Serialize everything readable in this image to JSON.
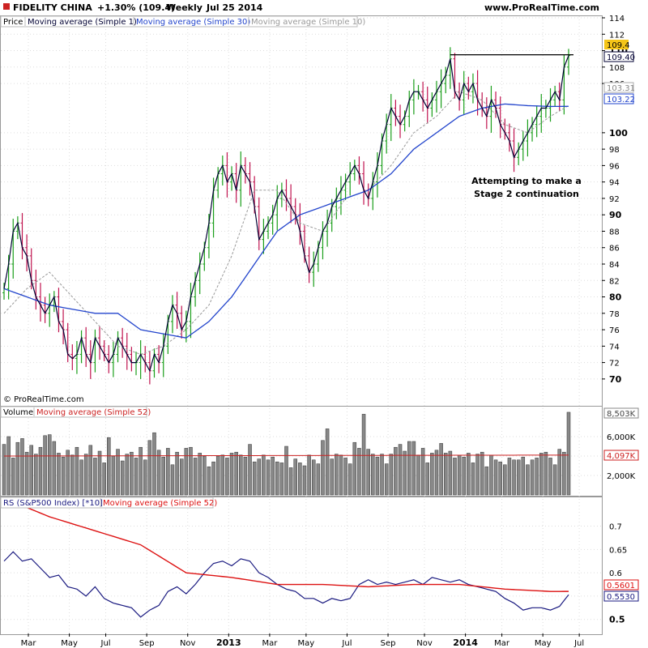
{
  "header": {
    "instrument": "FIDELITY CHINA",
    "change": "+1.30% (109.4)",
    "period": "Weekly",
    "date": "Jul 25 2014",
    "site": "www.ProRealTime.com"
  },
  "copyright": "© ProRealTime.com",
  "legends": {
    "price": [
      "Price",
      "Moving average (Simple 1)",
      "Moving average (Simple 30)",
      "Moving average (Simple 10)"
    ],
    "volume": [
      "Volume",
      "Moving average (Simple 52)"
    ],
    "rs": [
      "RS (S&P500 Index) [*10]",
      "Moving average (Simple 52)"
    ]
  },
  "colors": {
    "up": "#1a9e1a",
    "down": "#c0134f",
    "ma1": "#000033",
    "ma30": "#2244cc",
    "ma10": "#999999",
    "volbar": "#888888",
    "volma": "#cc2222",
    "rsline": "#1a1a80",
    "rsma": "#dd1111",
    "grid": "#dddddd",
    "lastprice_bg": "#f5c518"
  },
  "chart_data": [
    {
      "type": "line",
      "name": "price-panel",
      "weeks": 125,
      "ylim": [
        69,
        114
      ],
      "yticks": [
        70,
        72,
        74,
        76,
        78,
        80,
        82,
        84,
        86,
        88,
        90,
        92,
        94,
        96,
        98,
        100,
        106,
        108,
        110,
        112,
        114
      ],
      "ytick_labels": [
        "70",
        "72",
        "74",
        "76",
        "78",
        "80",
        "82",
        "84",
        "86",
        "88",
        "90",
        "92",
        "94",
        "96",
        "98",
        "100",
        "106",
        "108",
        "110",
        "112",
        "114"
      ],
      "close_anchors": [
        [
          0,
          81
        ],
        [
          1,
          84
        ],
        [
          2,
          88
        ],
        [
          3,
          89
        ],
        [
          4,
          86
        ],
        [
          5,
          85
        ],
        [
          6,
          82
        ],
        [
          7,
          80
        ],
        [
          8,
          79
        ],
        [
          9,
          78
        ],
        [
          10,
          79
        ],
        [
          11,
          80
        ],
        [
          12,
          77
        ],
        [
          13,
          76
        ],
        [
          14,
          73
        ],
        [
          15,
          72.5
        ],
        [
          16,
          73
        ],
        [
          17,
          75
        ],
        [
          18,
          73
        ],
        [
          19,
          72
        ],
        [
          20,
          75
        ],
        [
          21,
          74
        ],
        [
          22,
          73
        ],
        [
          23,
          72
        ],
        [
          24,
          73
        ],
        [
          25,
          75
        ],
        [
          26,
          74
        ],
        [
          27,
          73
        ],
        [
          28,
          72
        ],
        [
          29,
          72
        ],
        [
          30,
          73
        ],
        [
          31,
          72
        ],
        [
          32,
          71
        ],
        [
          33,
          73
        ],
        [
          34,
          72
        ],
        [
          35,
          74
        ],
        [
          36,
          77
        ],
        [
          37,
          79
        ],
        [
          38,
          78
        ],
        [
          39,
          76
        ],
        [
          40,
          77
        ],
        [
          41,
          80
        ],
        [
          42,
          82
        ],
        [
          43,
          84
        ],
        [
          44,
          86
        ],
        [
          45,
          89
        ],
        [
          46,
          93
        ],
        [
          47,
          95
        ],
        [
          48,
          96
        ],
        [
          49,
          94
        ],
        [
          50,
          95
        ],
        [
          51,
          93
        ],
        [
          52,
          96
        ],
        [
          53,
          95
        ],
        [
          54,
          94
        ],
        [
          55,
          91
        ],
        [
          56,
          87
        ],
        [
          57,
          88
        ],
        [
          58,
          89
        ],
        [
          59,
          90
        ],
        [
          60,
          92
        ],
        [
          61,
          93
        ],
        [
          62,
          92
        ],
        [
          63,
          91
        ],
        [
          64,
          90
        ],
        [
          65,
          88
        ],
        [
          66,
          85
        ],
        [
          67,
          83
        ],
        [
          68,
          84
        ],
        [
          69,
          86
        ],
        [
          70,
          88
        ],
        [
          71,
          89
        ],
        [
          72,
          91
        ],
        [
          73,
          92
        ],
        [
          74,
          93
        ],
        [
          75,
          94
        ],
        [
          76,
          95
        ],
        [
          77,
          96
        ],
        [
          78,
          95
        ],
        [
          79,
          93
        ],
        [
          80,
          92
        ],
        [
          81,
          94
        ],
        [
          82,
          96
        ],
        [
          83,
          99
        ],
        [
          84,
          101
        ],
        [
          85,
          103
        ],
        [
          86,
          102
        ],
        [
          87,
          101
        ],
        [
          88,
          102
        ],
        [
          89,
          104
        ],
        [
          90,
          105
        ],
        [
          91,
          105
        ],
        [
          92,
          104
        ],
        [
          93,
          103
        ],
        [
          94,
          104
        ],
        [
          95,
          105
        ],
        [
          96,
          106
        ],
        [
          97,
          107
        ],
        [
          98,
          109
        ],
        [
          99,
          105
        ],
        [
          100,
          104
        ],
        [
          101,
          106
        ],
        [
          102,
          105
        ],
        [
          103,
          106
        ],
        [
          104,
          104
        ],
        [
          105,
          103
        ],
        [
          106,
          102
        ],
        [
          107,
          104
        ],
        [
          108,
          103
        ],
        [
          109,
          101
        ],
        [
          110,
          100
        ],
        [
          111,
          99
        ],
        [
          112,
          97
        ],
        [
          113,
          98
        ],
        [
          114,
          99
        ],
        [
          115,
          100
        ],
        [
          116,
          101
        ],
        [
          117,
          102
        ],
        [
          118,
          103
        ],
        [
          119,
          103
        ],
        [
          120,
          104
        ],
        [
          121,
          105
        ],
        [
          122,
          104
        ],
        [
          123,
          108
        ],
        [
          124,
          109.4
        ]
      ],
      "ma30_anchors": [
        [
          0,
          81
        ],
        [
          5,
          80
        ],
        [
          10,
          79
        ],
        [
          15,
          78.5
        ],
        [
          20,
          78
        ],
        [
          25,
          78
        ],
        [
          30,
          76
        ],
        [
          35,
          75.5
        ],
        [
          40,
          75
        ],
        [
          45,
          77
        ],
        [
          50,
          80
        ],
        [
          55,
          84
        ],
        [
          60,
          88
        ],
        [
          65,
          90
        ],
        [
          70,
          91
        ],
        [
          75,
          92
        ],
        [
          80,
          93
        ],
        [
          85,
          95
        ],
        [
          90,
          98
        ],
        [
          95,
          100
        ],
        [
          100,
          102
        ],
        [
          105,
          103
        ],
        [
          110,
          103.5
        ],
        [
          115,
          103.3
        ],
        [
          120,
          103.2
        ],
        [
          124,
          103.22
        ]
      ],
      "ma10_anchors": [
        [
          0,
          78
        ],
        [
          5,
          81
        ],
        [
          10,
          83
        ],
        [
          15,
          80
        ],
        [
          20,
          77
        ],
        [
          25,
          74
        ],
        [
          30,
          73
        ],
        [
          35,
          74
        ],
        [
          40,
          76
        ],
        [
          45,
          79
        ],
        [
          50,
          85
        ],
        [
          55,
          93
        ],
        [
          60,
          93
        ],
        [
          65,
          89
        ],
        [
          70,
          88
        ],
        [
          75,
          92
        ],
        [
          80,
          93
        ],
        [
          85,
          96
        ],
        [
          90,
          100
        ],
        [
          95,
          102
        ],
        [
          100,
          105
        ],
        [
          105,
          104
        ],
        [
          110,
          101
        ],
        [
          115,
          100
        ],
        [
          120,
          102
        ],
        [
          124,
          103.31
        ]
      ],
      "resistance": {
        "from_week": 98,
        "to_week": 124,
        "y": 109.5
      },
      "last_price": "109.4",
      "ma1_last": "109.40",
      "ma10_last": "103.31",
      "ma30_last": "103.22",
      "annotation": [
        "Attempting to make a",
        "Stage 2 continuation"
      ]
    },
    {
      "type": "bar",
      "name": "volume-panel",
      "ylim": [
        0,
        9000
      ],
      "yticks": [
        2000,
        4000,
        6000
      ],
      "ytick_labels": [
        "2,000K",
        "4,000K",
        "6,000K"
      ],
      "values_k": [
        5200,
        6000,
        3800,
        5400,
        5800,
        4400,
        5100,
        4200,
        4900,
        4500,
        6200,
        5500,
        4300,
        3900,
        4600,
        4100,
        4900,
        3600,
        4200,
        5100,
        3800,
        4500,
        3300,
        5900,
        4000,
        4700,
        3500,
        4200,
        4400,
        3800,
        4900,
        3600,
        5600,
        4100,
        4600,
        3900,
        4800,
        3100,
        4400,
        3700,
        4800,
        4900,
        3800,
        4300,
        4000,
        2900,
        3400,
        4000,
        4100,
        3800,
        4300,
        4400,
        4100,
        3900,
        5200,
        3400,
        3700,
        4100,
        3600,
        3900,
        3400,
        3300,
        5000,
        2800,
        3700,
        3300,
        3000,
        4100,
        3600,
        3200,
        5600,
        6800,
        3700,
        4200,
        4100,
        3800,
        3200,
        5400,
        4800,
        6000,
        4700,
        4200,
        3900,
        4200,
        3200,
        4200,
        4900,
        5200,
        4500,
        5500,
        5500,
        4100,
        4800,
        3300,
        4300,
        4600,
        5300,
        4300,
        4500,
        3800,
        4100,
        3900,
        4300,
        3300,
        4200,
        4400,
        2900,
        4100,
        3600,
        3400,
        3100,
        3800,
        3600,
        3600,
        3900,
        3100,
        3600,
        3800,
        4300,
        4400,
        3800,
        3100,
        4700,
        4400,
        4100
      ],
      "volume_highlights": [
        [
          9,
          6100
        ],
        [
          33,
          6400
        ],
        [
          71,
          6800
        ],
        [
          79,
          8300
        ],
        [
          124,
          8503
        ]
      ],
      "ma52": [
        [
          0,
          4000
        ],
        [
          60,
          4050
        ],
        [
          124,
          4097
        ]
      ],
      "last_volume": "8,503K",
      "ma52_last": "4,097K"
    },
    {
      "type": "line",
      "name": "rs-panel",
      "ylim": [
        0.47,
        0.76
      ],
      "yticks": [
        0.5,
        0.55,
        0.6,
        0.65,
        0.7
      ],
      "ytick_labels": [
        "0.5",
        "0.55",
        "0.6",
        "0.65",
        "0.7"
      ],
      "rs_anchors": [
        [
          0,
          0.625
        ],
        [
          2,
          0.645
        ],
        [
          4,
          0.625
        ],
        [
          6,
          0.63
        ],
        [
          8,
          0.61
        ],
        [
          10,
          0.59
        ],
        [
          12,
          0.595
        ],
        [
          14,
          0.57
        ],
        [
          16,
          0.565
        ],
        [
          18,
          0.55
        ],
        [
          20,
          0.57
        ],
        [
          22,
          0.545
        ],
        [
          24,
          0.535
        ],
        [
          26,
          0.53
        ],
        [
          28,
          0.525
        ],
        [
          30,
          0.505
        ],
        [
          32,
          0.52
        ],
        [
          34,
          0.53
        ],
        [
          36,
          0.56
        ],
        [
          38,
          0.57
        ],
        [
          40,
          0.555
        ],
        [
          42,
          0.575
        ],
        [
          44,
          0.6
        ],
        [
          46,
          0.62
        ],
        [
          48,
          0.625
        ],
        [
          50,
          0.615
        ],
        [
          52,
          0.63
        ],
        [
          54,
          0.625
        ],
        [
          56,
          0.6
        ],
        [
          58,
          0.59
        ],
        [
          60,
          0.575
        ],
        [
          62,
          0.565
        ],
        [
          64,
          0.56
        ],
        [
          66,
          0.545
        ],
        [
          68,
          0.545
        ],
        [
          70,
          0.535
        ],
        [
          72,
          0.545
        ],
        [
          74,
          0.54
        ],
        [
          76,
          0.545
        ],
        [
          78,
          0.575
        ],
        [
          80,
          0.585
        ],
        [
          82,
          0.575
        ],
        [
          84,
          0.58
        ],
        [
          86,
          0.575
        ],
        [
          88,
          0.58
        ],
        [
          90,
          0.585
        ],
        [
          92,
          0.575
        ],
        [
          94,
          0.59
        ],
        [
          96,
          0.585
        ],
        [
          98,
          0.58
        ],
        [
          100,
          0.585
        ],
        [
          102,
          0.575
        ],
        [
          104,
          0.57
        ],
        [
          106,
          0.565
        ],
        [
          108,
          0.56
        ],
        [
          110,
          0.545
        ],
        [
          112,
          0.535
        ],
        [
          114,
          0.52
        ],
        [
          116,
          0.525
        ],
        [
          118,
          0.525
        ],
        [
          120,
          0.52
        ],
        [
          122,
          0.528
        ],
        [
          124,
          0.553
        ]
      ],
      "ma52_anchors": [
        [
          0,
          0.76
        ],
        [
          10,
          0.72
        ],
        [
          20,
          0.69
        ],
        [
          30,
          0.66
        ],
        [
          40,
          0.6
        ],
        [
          50,
          0.59
        ],
        [
          60,
          0.575
        ],
        [
          70,
          0.575
        ],
        [
          80,
          0.57
        ],
        [
          90,
          0.575
        ],
        [
          100,
          0.575
        ],
        [
          110,
          0.565
        ],
        [
          120,
          0.56
        ],
        [
          124,
          0.5601
        ]
      ],
      "rs_last": "0.5530",
      "ma52_last": "0.5601"
    }
  ],
  "x_axis": {
    "labels": [
      "Mar",
      "May",
      "Jul",
      "Sep",
      "Nov",
      "2013",
      "Mar",
      "May",
      "Jul",
      "Sep",
      "Nov",
      "2014",
      "Mar",
      "May",
      "Jul"
    ],
    "weeks": [
      6,
      15,
      23,
      32,
      41,
      50,
      59,
      67,
      76,
      85,
      93,
      102,
      110,
      119,
      127
    ],
    "bold": [
      "2013",
      "2014"
    ]
  }
}
